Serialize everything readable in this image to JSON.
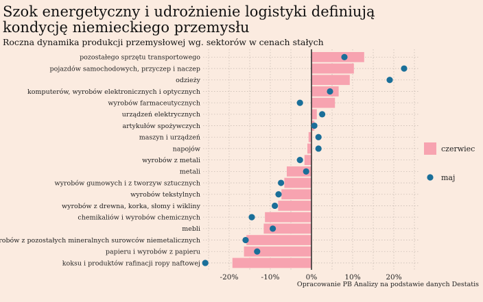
{
  "title": "Szok energetyczny i udrożnienie logistyki definiują kondycję niemieckiego przemysłu",
  "subtitle": "Roczna dynamika produkcji przemysłowej wg. sektorów w cenach stałych",
  "caption": "Opracowanie PB Analizy na podstawie danych Destatis",
  "chart_data": {
    "type": "bar",
    "orientation": "horizontal",
    "categories": [
      "pozostałego sprzętu transportowego",
      "pojazdów samochodowych, przyczep i naczep",
      "odzieży",
      "komputerów, wyrobów elektronicznych i optycznych",
      "wyrobów farmaceutycznych",
      "urządzeń elektrycznych",
      "artykułów spożywczych",
      "maszyn i urządzeń",
      "napojów",
      "wyrobów z metali",
      "metali",
      "wyrobów gumowych i z tworzyw sztucznych",
      "wyrobów tekstylnych",
      "wyrobów z drewna, korka, słomy i wikliny",
      "chemikaliów i wyrobów chemicznych",
      "mebli",
      "wyrobów z pozostałych mineralnych surowców niemetalicznych",
      "papieru i wyrobów z papieru",
      "koksu i produktów rafinacji ropy naftowej"
    ],
    "series": [
      {
        "name": "czerwiec",
        "kind": "bar",
        "color": "#f7a3b0",
        "values": [
          12.8,
          10.3,
          9.3,
          6.6,
          5.7,
          1.3,
          0.7,
          -0.7,
          -1.0,
          -1.7,
          -6.0,
          -6.6,
          -7.3,
          -8.1,
          -11.3,
          -11.6,
          -15.8,
          -16.4,
          -19.2
        ]
      },
      {
        "name": "maj",
        "kind": "point",
        "color": "#1a6f99",
        "values": [
          8.0,
          22.5,
          19.0,
          4.5,
          -2.8,
          2.6,
          0.7,
          1.7,
          1.7,
          -2.8,
          -1.3,
          -7.4,
          -8.0,
          -8.9,
          -14.5,
          -9.4,
          -16.0,
          -13.2,
          -25.8
        ]
      }
    ],
    "xlim": [
      -26,
      26
    ],
    "xticks": [
      -20,
      -10,
      0,
      10,
      20
    ],
    "xtick_labels": [
      "-20%",
      "-10%",
      "0%",
      "10%",
      "20%"
    ],
    "xlabel": "",
    "ylabel": "",
    "grid": true,
    "legend_position": "right"
  },
  "colors": {
    "background": "#fbebe0",
    "grid": "#c9bcb3",
    "zero_line": "#333333"
  }
}
